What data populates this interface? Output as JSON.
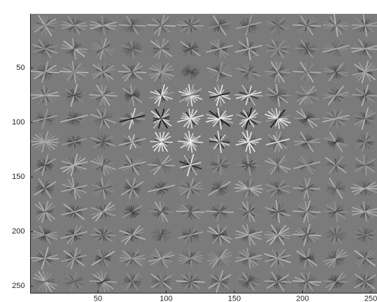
{
  "chart_data": {
    "type": "image",
    "xlim": [
      0.5,
      256.5
    ],
    "ylim": [
      0.5,
      256.5
    ],
    "xticks": [
      50,
      100,
      150,
      200,
      250
    ],
    "yticks": [
      50,
      100,
      150,
      200,
      250
    ],
    "y_reversed": true
  }
}
